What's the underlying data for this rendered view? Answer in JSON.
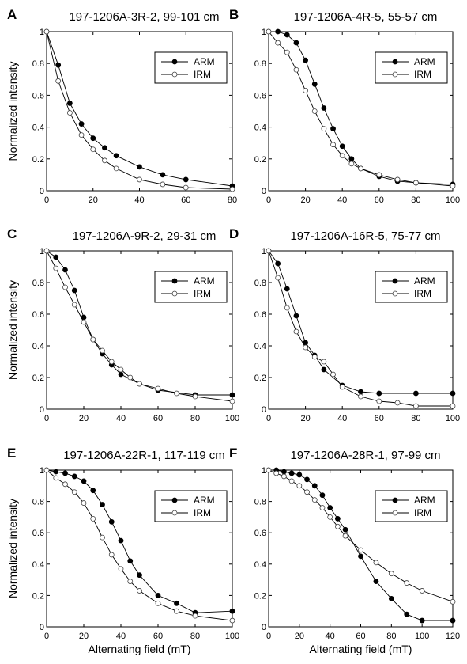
{
  "figure": {
    "series_names": [
      "ARM",
      "IRM"
    ],
    "ylabel": "Normalized intensity",
    "xlabel": "Alternating field (mT)"
  },
  "chart_data": [
    {
      "type": "line",
      "panel": "A",
      "title": "197-1206A-3R-2, 99-101 cm",
      "xlim": [
        0,
        80
      ],
      "ylim": [
        0,
        1
      ],
      "xticks": [
        0,
        20,
        40,
        60,
        80
      ],
      "yticks": [
        0,
        0.2,
        0.4,
        0.6,
        0.8,
        1
      ],
      "ylabel": "Normalized intensity",
      "xlabel": "",
      "legend": "top-right",
      "series": [
        {
          "name": "ARM",
          "marker": "filled",
          "x": [
            0,
            5,
            10,
            15,
            20,
            25,
            30,
            40,
            50,
            60,
            80
          ],
          "y": [
            1,
            0.79,
            0.55,
            0.42,
            0.33,
            0.27,
            0.22,
            0.15,
            0.1,
            0.07,
            0.03
          ]
        },
        {
          "name": "IRM",
          "marker": "open",
          "x": [
            0,
            5,
            10,
            15,
            20,
            25,
            30,
            40,
            50,
            60,
            80
          ],
          "y": [
            1,
            0.69,
            0.49,
            0.35,
            0.26,
            0.19,
            0.14,
            0.07,
            0.04,
            0.02,
            0.01
          ]
        }
      ]
    },
    {
      "type": "line",
      "panel": "B",
      "title": "197-1206A-4R-5, 55-57 cm",
      "xlim": [
        0,
        100
      ],
      "ylim": [
        0,
        1
      ],
      "xticks": [
        0,
        20,
        40,
        60,
        80,
        100
      ],
      "yticks": [
        0,
        0.2,
        0.4,
        0.6,
        0.8,
        1
      ],
      "ylabel": "",
      "xlabel": "",
      "legend": "top-right",
      "series": [
        {
          "name": "ARM",
          "marker": "filled",
          "x": [
            0,
            5,
            10,
            15,
            20,
            25,
            30,
            35,
            40,
            45,
            50,
            60,
            70,
            80,
            100
          ],
          "y": [
            1,
            1,
            0.98,
            0.93,
            0.82,
            0.67,
            0.52,
            0.39,
            0.28,
            0.2,
            0.14,
            0.09,
            0.06,
            0.05,
            0.04
          ]
        },
        {
          "name": "IRM",
          "marker": "open",
          "x": [
            0,
            5,
            10,
            15,
            20,
            25,
            30,
            35,
            40,
            45,
            50,
            60,
            70,
            80,
            100
          ],
          "y": [
            1,
            0.93,
            0.87,
            0.76,
            0.63,
            0.5,
            0.39,
            0.29,
            0.22,
            0.17,
            0.14,
            0.1,
            0.07,
            0.05,
            0.03
          ]
        }
      ]
    },
    {
      "type": "line",
      "panel": "C",
      "title": "197-1206A-9R-2, 29-31 cm",
      "xlim": [
        0,
        100
      ],
      "ylim": [
        0,
        1
      ],
      "xticks": [
        0,
        20,
        40,
        60,
        80,
        100
      ],
      "yticks": [
        0,
        0.2,
        0.4,
        0.6,
        0.8,
        1
      ],
      "ylabel": "Normalized intensity",
      "xlabel": "",
      "legend": "top-right",
      "series": [
        {
          "name": "ARM",
          "marker": "filled",
          "x": [
            0,
            5,
            10,
            15,
            20,
            25,
            30,
            35,
            40,
            50,
            60,
            80,
            100
          ],
          "y": [
            1,
            0.96,
            0.88,
            0.75,
            0.58,
            0.44,
            0.35,
            0.28,
            0.22,
            0.16,
            0.12,
            0.09,
            0.09
          ]
        },
        {
          "name": "IRM",
          "marker": "open",
          "x": [
            0,
            5,
            10,
            15,
            20,
            25,
            30,
            35,
            40,
            45,
            50,
            60,
            70,
            80,
            100
          ],
          "y": [
            1,
            0.89,
            0.77,
            0.66,
            0.55,
            0.44,
            0.37,
            0.3,
            0.25,
            0.2,
            0.16,
            0.13,
            0.1,
            0.08,
            0.05
          ]
        }
      ]
    },
    {
      "type": "line",
      "panel": "D",
      "title": "197-1206A-16R-5, 75-77 cm",
      "xlim": [
        0,
        100
      ],
      "ylim": [
        0,
        1
      ],
      "xticks": [
        0,
        20,
        40,
        60,
        80,
        100
      ],
      "yticks": [
        0,
        0.2,
        0.4,
        0.6,
        0.8,
        1
      ],
      "ylabel": "",
      "xlabel": "",
      "legend": "top-right",
      "series": [
        {
          "name": "ARM",
          "marker": "filled",
          "x": [
            0,
            5,
            10,
            15,
            20,
            25,
            30,
            40,
            50,
            60,
            80,
            100
          ],
          "y": [
            1,
            0.92,
            0.76,
            0.59,
            0.42,
            0.34,
            0.25,
            0.15,
            0.11,
            0.1,
            0.1,
            0.1
          ]
        },
        {
          "name": "IRM",
          "marker": "open",
          "x": [
            0,
            5,
            10,
            15,
            20,
            25,
            30,
            35,
            40,
            50,
            60,
            70,
            80,
            100
          ],
          "y": [
            1,
            0.83,
            0.64,
            0.49,
            0.39,
            0.33,
            0.3,
            0.22,
            0.14,
            0.08,
            0.05,
            0.04,
            0.02,
            0.02
          ]
        }
      ]
    },
    {
      "type": "line",
      "panel": "E",
      "title": "197-1206A-22R-1, 117-119 cm",
      "xlim": [
        0,
        100
      ],
      "ylim": [
        0,
        1
      ],
      "xticks": [
        0,
        20,
        40,
        60,
        80,
        100
      ],
      "yticks": [
        0,
        0.2,
        0.4,
        0.6,
        0.8,
        1
      ],
      "ylabel": "Normalized intensity",
      "xlabel": "Alternating field (mT)",
      "legend": "top-right",
      "series": [
        {
          "name": "ARM",
          "marker": "filled",
          "x": [
            0,
            5,
            10,
            15,
            20,
            25,
            30,
            35,
            40,
            45,
            50,
            60,
            70,
            80,
            100
          ],
          "y": [
            1,
            0.99,
            0.98,
            0.96,
            0.93,
            0.87,
            0.78,
            0.67,
            0.55,
            0.42,
            0.33,
            0.2,
            0.15,
            0.09,
            0.1
          ]
        },
        {
          "name": "IRM",
          "marker": "open",
          "x": [
            0,
            5,
            10,
            15,
            20,
            25,
            30,
            35,
            40,
            45,
            50,
            60,
            70,
            80,
            100
          ],
          "y": [
            1,
            0.95,
            0.91,
            0.86,
            0.79,
            0.69,
            0.57,
            0.46,
            0.37,
            0.29,
            0.23,
            0.15,
            0.1,
            0.07,
            0.04
          ]
        }
      ]
    },
    {
      "type": "line",
      "panel": "F",
      "title": "197-1206A-28R-1, 97-99 cm",
      "xlim": [
        0,
        120
      ],
      "ylim": [
        0,
        1
      ],
      "xticks": [
        0,
        20,
        40,
        60,
        80,
        100,
        120
      ],
      "yticks": [
        0,
        0.2,
        0.4,
        0.6,
        0.8,
        1
      ],
      "ylabel": "",
      "xlabel": "Alternating field (mT)",
      "legend": "top-right",
      "series": [
        {
          "name": "ARM",
          "marker": "filled",
          "x": [
            0,
            5,
            10,
            15,
            20,
            25,
            30,
            35,
            40,
            45,
            50,
            60,
            70,
            80,
            90,
            100,
            120
          ],
          "y": [
            1,
            1,
            0.99,
            0.98,
            0.97,
            0.94,
            0.9,
            0.84,
            0.76,
            0.69,
            0.62,
            0.45,
            0.29,
            0.18,
            0.08,
            0.04,
            0.04
          ]
        },
        {
          "name": "IRM",
          "marker": "open",
          "x": [
            0,
            5,
            10,
            15,
            20,
            25,
            30,
            35,
            40,
            45,
            50,
            60,
            70,
            80,
            90,
            100,
            120
          ],
          "y": [
            1,
            0.98,
            0.96,
            0.93,
            0.9,
            0.86,
            0.81,
            0.76,
            0.7,
            0.64,
            0.58,
            0.49,
            0.41,
            0.34,
            0.28,
            0.23,
            0.16
          ]
        }
      ]
    }
  ]
}
